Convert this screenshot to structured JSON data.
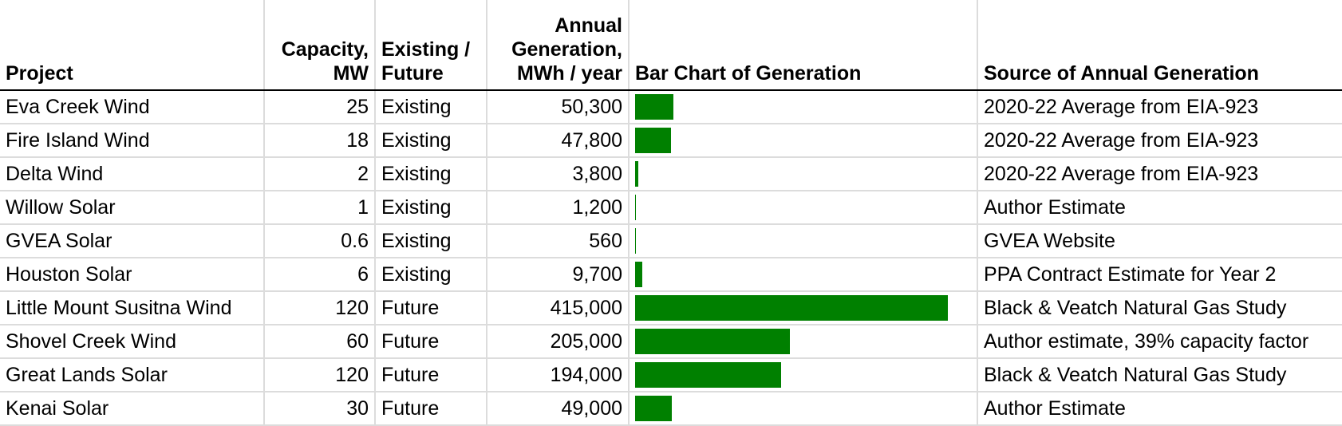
{
  "headers": {
    "project": "Project",
    "capacity_line1": "Capacity,",
    "capacity_line2": "MW",
    "status_line1": "Existing /",
    "status_line2": "Future",
    "generation_line1": "Annual",
    "generation_line2": "Generation,",
    "generation_line3": "MWh / year",
    "bar_chart": "Bar Chart of Generation",
    "source": "Source of Annual Generation"
  },
  "colors": {
    "bar": "#008000",
    "gridline": "#dcdcdc"
  },
  "chart_data": {
    "type": "bar",
    "orientation": "horizontal",
    "categories": [
      "Eva Creek Wind",
      "Fire Island Wind",
      "Delta Wind",
      "Willow Solar",
      "GVEA Solar",
      "Houston Solar",
      "Little Mount Susitna Wind",
      "Shovel Creek Wind",
      "Great Lands Solar",
      "Kenai Solar"
    ],
    "values": [
      50300,
      47800,
      3800,
      1200,
      560,
      9700,
      415000,
      205000,
      194000,
      49000
    ],
    "xlim": [
      0,
      415000
    ],
    "title": "Bar Chart of Generation"
  },
  "rows": [
    {
      "project": "Eva Creek Wind",
      "capacity": "25",
      "status": "Existing",
      "generation": "50,300",
      "source": "2020-22 Average from EIA-923"
    },
    {
      "project": "Fire Island Wind",
      "capacity": "18",
      "status": "Existing",
      "generation": "47,800",
      "source": "2020-22 Average from EIA-923"
    },
    {
      "project": "Delta Wind",
      "capacity": "2",
      "status": "Existing",
      "generation": "3,800",
      "source": "2020-22 Average from EIA-923"
    },
    {
      "project": "Willow Solar",
      "capacity": "1",
      "status": "Existing",
      "generation": "1,200",
      "source": "Author Estimate"
    },
    {
      "project": "GVEA Solar",
      "capacity": "0.6",
      "status": "Existing",
      "generation": "560",
      "source": "GVEA Website"
    },
    {
      "project": "Houston Solar",
      "capacity": "6",
      "status": "Existing",
      "generation": "9,700",
      "source": "PPA Contract Estimate for Year 2"
    },
    {
      "project": "Little Mount Susitna Wind",
      "capacity": "120",
      "status": "Future",
      "generation": "415,000",
      "source": "Black & Veatch Natural Gas Study"
    },
    {
      "project": "Shovel Creek Wind",
      "capacity": "60",
      "status": "Future",
      "generation": "205,000",
      "source": "Author estimate, 39% capacity factor"
    },
    {
      "project": "Great Lands Solar",
      "capacity": "120",
      "status": "Future",
      "generation": "194,000",
      "source": "Black & Veatch Natural Gas Study"
    },
    {
      "project": "Kenai Solar",
      "capacity": "30",
      "status": "Future",
      "generation": "49,000",
      "source": "Author Estimate"
    }
  ]
}
